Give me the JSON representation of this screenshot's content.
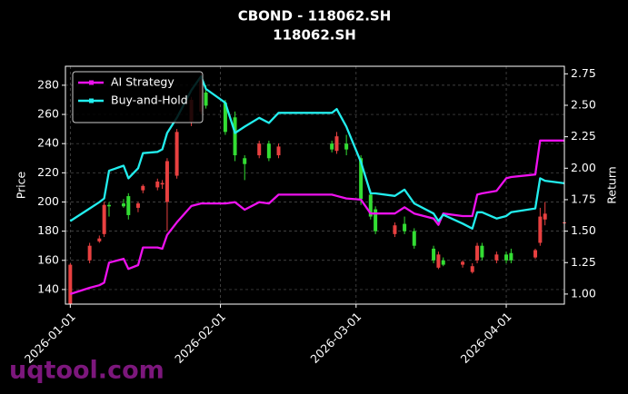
{
  "chart_data": {
    "type": "candlestick",
    "title": "CBOND - 118062.SH",
    "subtitle": "118062.SH",
    "ylabel": "Price",
    "y2label": "Return",
    "watermark": "uqtool.com",
    "x": [
      "2026-01-01",
      "2026-01-05",
      "2026-01-07",
      "2026-01-08",
      "2026-01-09",
      "2026-01-12",
      "2026-01-13",
      "2026-01-15",
      "2026-01-16",
      "2026-01-19",
      "2026-01-20",
      "2026-01-21",
      "2026-01-23",
      "2026-01-26",
      "2026-01-28",
      "2026-01-29",
      "2026-02-02",
      "2026-02-04",
      "2026-02-06",
      "2026-02-09",
      "2026-02-11",
      "2026-02-13",
      "2026-02-24",
      "2026-02-25",
      "2026-02-27",
      "2026-03-02",
      "2026-03-04",
      "2026-03-05",
      "2026-03-09",
      "2026-03-11",
      "2026-03-13",
      "2026-03-17",
      "2026-03-18",
      "2026-03-19",
      "2026-03-23",
      "2026-03-25",
      "2026-03-26",
      "2026-03-27",
      "2026-03-30",
      "2026-04-01",
      "2026-04-02",
      "2026-04-07",
      "2026-04-08",
      "2026-04-09",
      "2026-04-13"
    ],
    "open": [
      130,
      160,
      173,
      178,
      198,
      199,
      204,
      196,
      208,
      210,
      212,
      200,
      218,
      255,
      262,
      275,
      268,
      258,
      230,
      232,
      240,
      232,
      240,
      235,
      240,
      230,
      205,
      195,
      178,
      185,
      180,
      168,
      155,
      160,
      157,
      152,
      160,
      170,
      160,
      164,
      165,
      162,
      172,
      188,
      186
    ],
    "high": [
      158,
      172,
      177,
      200,
      200,
      202,
      206,
      200,
      212,
      216,
      215,
      230,
      250,
      272,
      288,
      280,
      270,
      262,
      232,
      242,
      242,
      240,
      242,
      248,
      246,
      232,
      208,
      197,
      186,
      190,
      182,
      170,
      166,
      162,
      160,
      158,
      172,
      172,
      166,
      166,
      168,
      168,
      196,
      200,
      188
    ],
    "low": [
      130,
      158,
      172,
      176,
      190,
      196,
      188,
      193,
      206,
      208,
      209,
      180,
      216,
      252,
      260,
      264,
      246,
      228,
      215,
      230,
      228,
      230,
      234,
      233,
      232,
      198,
      188,
      178,
      176,
      178,
      168,
      158,
      154,
      156,
      155,
      151,
      158,
      160,
      158,
      158,
      158,
      161,
      170,
      184,
      184
    ],
    "close": [
      157,
      170,
      175,
      198,
      197,
      197,
      191,
      199,
      211,
      214,
      213,
      228,
      248,
      270,
      285,
      266,
      248,
      232,
      226,
      240,
      230,
      238,
      236,
      245,
      236,
      202,
      190,
      180,
      184,
      180,
      170,
      160,
      164,
      157,
      159,
      156,
      170,
      162,
      164,
      160,
      160,
      167,
      190,
      192,
      186
    ],
    "up_color": "#e84040",
    "down_color": "#33dd33",
    "series": [
      {
        "name": "AI Strategy",
        "color": "#ee11ee",
        "axis": "y2",
        "values": [
          1.0,
          1.05,
          1.07,
          1.09,
          1.25,
          1.28,
          1.2,
          1.23,
          1.37,
          1.37,
          1.36,
          1.47,
          1.57,
          1.7,
          1.72,
          1.72,
          1.72,
          1.73,
          1.67,
          1.73,
          1.72,
          1.79,
          1.79,
          1.78,
          1.76,
          1.75,
          1.64,
          1.64,
          1.64,
          1.69,
          1.64,
          1.6,
          1.55,
          1.64,
          1.62,
          1.62,
          1.79,
          1.8,
          1.82,
          1.92,
          1.93,
          1.95,
          2.22,
          2.22,
          2.22
        ]
      },
      {
        "name": "Buy-and-Hold",
        "color": "#22eeee",
        "axis": "y2",
        "values": [
          1.58,
          1.68,
          1.73,
          1.76,
          1.98,
          2.02,
          1.92,
          2.0,
          2.12,
          2.13,
          2.15,
          2.28,
          2.4,
          2.62,
          2.73,
          2.63,
          2.52,
          2.28,
          2.33,
          2.4,
          2.36,
          2.44,
          2.44,
          2.47,
          2.33,
          2.05,
          1.8,
          1.8,
          1.78,
          1.83,
          1.72,
          1.64,
          1.58,
          1.63,
          1.56,
          1.52,
          1.65,
          1.65,
          1.6,
          1.62,
          1.65,
          1.68,
          1.92,
          1.9,
          1.88
        ]
      }
    ],
    "xlim": [
      "2025-12-31",
      "2026-04-13"
    ],
    "xticks": [
      "2026-01-01",
      "2026-02-01",
      "2026-03-01",
      "2026-04-01"
    ],
    "ylim": [
      130,
      293
    ],
    "yticks": [
      140,
      160,
      180,
      200,
      220,
      240,
      260,
      280
    ],
    "y2lim": [
      0.92,
      2.81
    ],
    "y2ticks": [
      {
        "value": 1,
        "label": "1.00"
      },
      1.25,
      {
        "value": 1.5,
        "label": "1.50"
      },
      1.75,
      {
        "value": 2,
        "label": "2.00"
      },
      2.25,
      {
        "value": 2.5,
        "label": "2.50"
      },
      2.75
    ],
    "grid": true,
    "legend": "upper left"
  }
}
